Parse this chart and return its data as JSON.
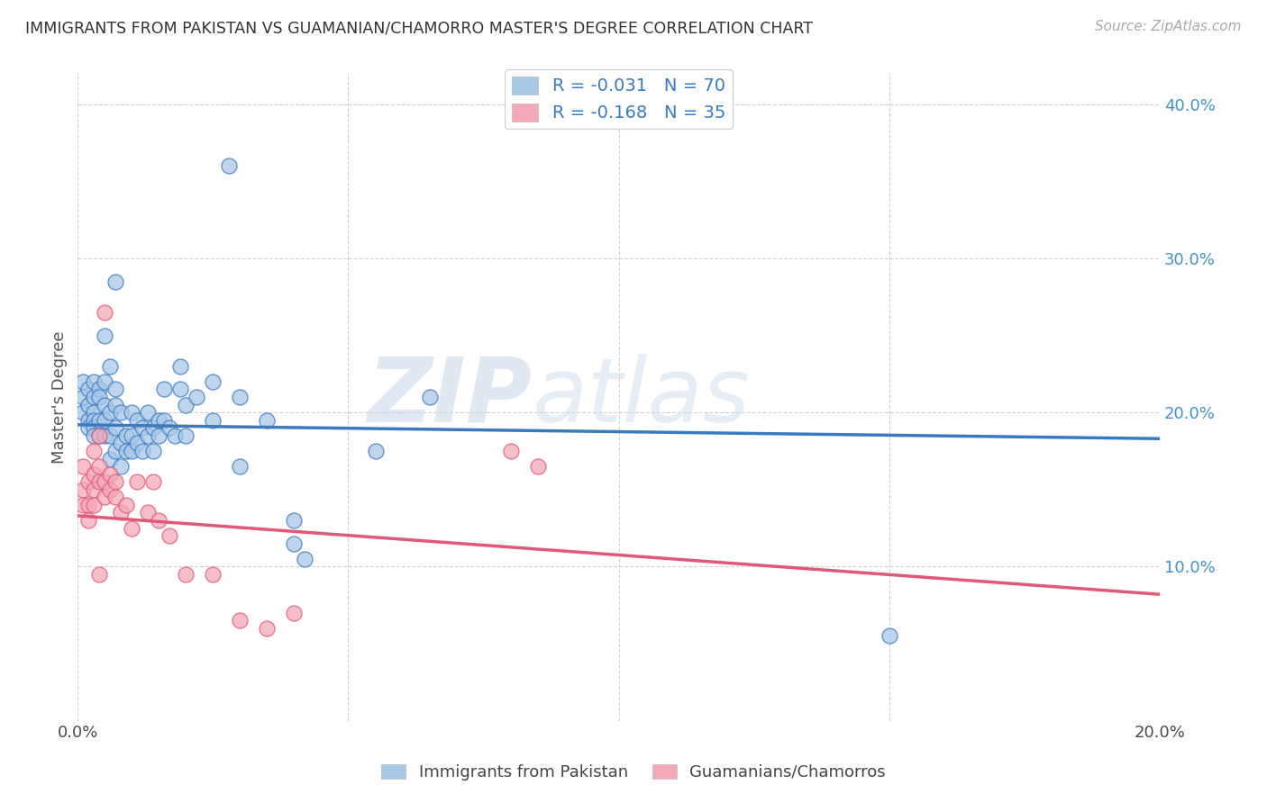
{
  "title": "IMMIGRANTS FROM PAKISTAN VS GUAMANIAN/CHAMORRO MASTER'S DEGREE CORRELATION CHART",
  "source": "Source: ZipAtlas.com",
  "ylabel": "Master's Degree",
  "xlim": [
    0.0,
    0.2
  ],
  "ylim": [
    0.0,
    0.42
  ],
  "yticks": [
    0.0,
    0.1,
    0.2,
    0.3,
    0.4
  ],
  "xticks": [
    0.0,
    0.05,
    0.1,
    0.15,
    0.2
  ],
  "blue_color": "#a8c8e8",
  "pink_color": "#f4a8b8",
  "line_blue": "#3a7abf",
  "line_pink": "#e05878",
  "blue_scatter": [
    [
      0.001,
      0.22
    ],
    [
      0.001,
      0.21
    ],
    [
      0.001,
      0.2
    ],
    [
      0.002,
      0.215
    ],
    [
      0.002,
      0.205
    ],
    [
      0.002,
      0.195
    ],
    [
      0.002,
      0.19
    ],
    [
      0.003,
      0.22
    ],
    [
      0.003,
      0.21
    ],
    [
      0.003,
      0.2
    ],
    [
      0.003,
      0.195
    ],
    [
      0.003,
      0.19
    ],
    [
      0.003,
      0.185
    ],
    [
      0.004,
      0.215
    ],
    [
      0.004,
      0.21
    ],
    [
      0.004,
      0.195
    ],
    [
      0.004,
      0.185
    ],
    [
      0.005,
      0.25
    ],
    [
      0.005,
      0.22
    ],
    [
      0.005,
      0.205
    ],
    [
      0.005,
      0.195
    ],
    [
      0.005,
      0.185
    ],
    [
      0.006,
      0.23
    ],
    [
      0.006,
      0.2
    ],
    [
      0.006,
      0.185
    ],
    [
      0.006,
      0.17
    ],
    [
      0.007,
      0.285
    ],
    [
      0.007,
      0.215
    ],
    [
      0.007,
      0.205
    ],
    [
      0.007,
      0.19
    ],
    [
      0.007,
      0.175
    ],
    [
      0.008,
      0.2
    ],
    [
      0.008,
      0.18
    ],
    [
      0.008,
      0.165
    ],
    [
      0.009,
      0.185
    ],
    [
      0.009,
      0.175
    ],
    [
      0.01,
      0.2
    ],
    [
      0.01,
      0.185
    ],
    [
      0.01,
      0.175
    ],
    [
      0.011,
      0.195
    ],
    [
      0.011,
      0.18
    ],
    [
      0.012,
      0.19
    ],
    [
      0.012,
      0.175
    ],
    [
      0.013,
      0.2
    ],
    [
      0.013,
      0.185
    ],
    [
      0.014,
      0.19
    ],
    [
      0.014,
      0.175
    ],
    [
      0.015,
      0.195
    ],
    [
      0.015,
      0.185
    ],
    [
      0.016,
      0.215
    ],
    [
      0.016,
      0.195
    ],
    [
      0.017,
      0.19
    ],
    [
      0.018,
      0.185
    ],
    [
      0.019,
      0.23
    ],
    [
      0.019,
      0.215
    ],
    [
      0.02,
      0.205
    ],
    [
      0.02,
      0.185
    ],
    [
      0.022,
      0.21
    ],
    [
      0.025,
      0.22
    ],
    [
      0.025,
      0.195
    ],
    [
      0.028,
      0.36
    ],
    [
      0.03,
      0.21
    ],
    [
      0.03,
      0.165
    ],
    [
      0.035,
      0.195
    ],
    [
      0.04,
      0.13
    ],
    [
      0.04,
      0.115
    ],
    [
      0.042,
      0.105
    ],
    [
      0.055,
      0.175
    ],
    [
      0.065,
      0.21
    ],
    [
      0.15,
      0.055
    ]
  ],
  "pink_scatter": [
    [
      0.001,
      0.165
    ],
    [
      0.001,
      0.15
    ],
    [
      0.001,
      0.14
    ],
    [
      0.002,
      0.155
    ],
    [
      0.002,
      0.14
    ],
    [
      0.002,
      0.13
    ],
    [
      0.003,
      0.175
    ],
    [
      0.003,
      0.16
    ],
    [
      0.003,
      0.15
    ],
    [
      0.003,
      0.14
    ],
    [
      0.004,
      0.185
    ],
    [
      0.004,
      0.165
    ],
    [
      0.004,
      0.155
    ],
    [
      0.004,
      0.095
    ],
    [
      0.005,
      0.265
    ],
    [
      0.005,
      0.155
    ],
    [
      0.005,
      0.145
    ],
    [
      0.006,
      0.16
    ],
    [
      0.006,
      0.15
    ],
    [
      0.007,
      0.155
    ],
    [
      0.007,
      0.145
    ],
    [
      0.008,
      0.135
    ],
    [
      0.009,
      0.14
    ],
    [
      0.01,
      0.125
    ],
    [
      0.011,
      0.155
    ],
    [
      0.013,
      0.135
    ],
    [
      0.014,
      0.155
    ],
    [
      0.015,
      0.13
    ],
    [
      0.017,
      0.12
    ],
    [
      0.02,
      0.095
    ],
    [
      0.025,
      0.095
    ],
    [
      0.03,
      0.065
    ],
    [
      0.035,
      0.06
    ],
    [
      0.04,
      0.07
    ],
    [
      0.08,
      0.175
    ],
    [
      0.085,
      0.165
    ]
  ],
  "watermark_zip": "ZIP",
  "watermark_atlas": "atlas",
  "background_color": "#ffffff",
  "grid_color": "#cccccc",
  "blue_line_start_y": 0.192,
  "blue_line_end_y": 0.183,
  "pink_line_start_y": 0.133,
  "pink_line_end_y": 0.082
}
